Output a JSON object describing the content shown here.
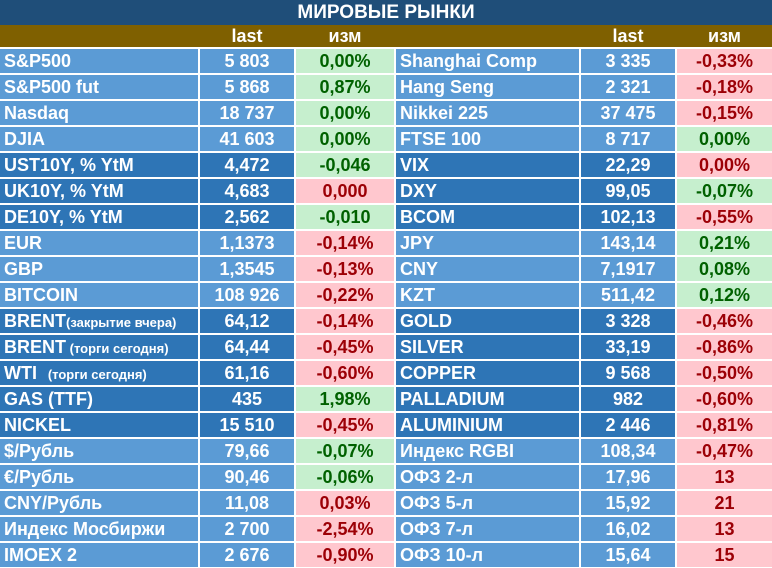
{
  "title": "МИРОВЫЕ РЫНКИ",
  "headers": {
    "last": "last",
    "change": "изм"
  },
  "rows": [
    {
      "left": {
        "name": "S&P500",
        "last": "5 803",
        "chg": "0,00%",
        "tone": "pos"
      },
      "right": {
        "name": "Shanghai Comp",
        "last": "3 335",
        "chg": "-0,33%",
        "tone": "neg"
      },
      "shade": "light"
    },
    {
      "left": {
        "name": "S&P500 fut",
        "last": "5 868",
        "chg": "0,87%",
        "tone": "pos"
      },
      "right": {
        "name": "Hang Seng",
        "last": "2 321",
        "chg": "-0,18%",
        "tone": "neg"
      },
      "shade": "light"
    },
    {
      "left": {
        "name": "Nasdaq",
        "last": "18 737",
        "chg": "0,00%",
        "tone": "pos"
      },
      "right": {
        "name": "Nikkei 225",
        "last": "37 475",
        "chg": "-0,15%",
        "tone": "neg"
      },
      "shade": "light"
    },
    {
      "left": {
        "name": "DJIA",
        "last": "41 603",
        "chg": "0,00%",
        "tone": "pos"
      },
      "right": {
        "name": "FTSE 100",
        "last": "8 717",
        "chg": "0,00%",
        "tone": "pos"
      },
      "shade": "light"
    },
    {
      "left": {
        "name": "UST10Y, % YtM",
        "last": "4,472",
        "chg": "-0,046",
        "tone": "pos"
      },
      "right": {
        "name": "VIX",
        "last": "22,29",
        "chg": "0,00%",
        "tone": "neg"
      },
      "shade": "dark"
    },
    {
      "left": {
        "name": "UK10Y, % YtM",
        "last": "4,683",
        "chg": "0,000",
        "tone": "neg"
      },
      "right": {
        "name": "DXY",
        "last": "99,05",
        "chg": "-0,07%",
        "tone": "pos"
      },
      "shade": "dark"
    },
    {
      "left": {
        "name": "DE10Y, % YtM",
        "last": "2,562",
        "chg": "-0,010",
        "tone": "pos"
      },
      "right": {
        "name": "BCOM",
        "last": "102,13",
        "chg": "-0,55%",
        "tone": "neg"
      },
      "shade": "dark"
    },
    {
      "left": {
        "name": "EUR",
        "last": "1,1373",
        "chg": "-0,14%",
        "tone": "neg"
      },
      "right": {
        "name": "JPY",
        "last": "143,14",
        "chg": "0,21%",
        "tone": "pos"
      },
      "shade": "light"
    },
    {
      "left": {
        "name": "GBP",
        "last": "1,3545",
        "chg": "-0,13%",
        "tone": "neg"
      },
      "right": {
        "name": "CNY",
        "last": "7,1917",
        "chg": "0,08%",
        "tone": "pos"
      },
      "shade": "light"
    },
    {
      "left": {
        "name": "BITCOIN",
        "last": "108 926",
        "chg": "-0,22%",
        "tone": "neg"
      },
      "right": {
        "name": "KZT",
        "last": "511,42",
        "chg": "0,12%",
        "tone": "pos"
      },
      "shade": "light"
    },
    {
      "left": {
        "name": "BRENT",
        "note": "(закрытие вчера)",
        "last": "64,12",
        "chg": "-0,14%",
        "tone": "neg"
      },
      "right": {
        "name": "GOLD",
        "last": "3 328",
        "chg": "-0,46%",
        "tone": "neg"
      },
      "shade": "dark"
    },
    {
      "left": {
        "name": "BRENT",
        "note": " (торги сегодня)",
        "last": "64,44",
        "chg": "-0,45%",
        "tone": "neg"
      },
      "right": {
        "name": "SILVER",
        "last": "33,19",
        "chg": "-0,86%",
        "tone": "neg"
      },
      "shade": "dark"
    },
    {
      "left": {
        "name": "WTI",
        "note": "   (торги сегодня)",
        "last": "61,16",
        "chg": "-0,60%",
        "tone": "neg"
      },
      "right": {
        "name": "COPPER",
        "last": "9 568",
        "chg": "-0,50%",
        "tone": "neg"
      },
      "shade": "dark"
    },
    {
      "left": {
        "name": "GAS (TTF)",
        "last": "435",
        "chg": "1,98%",
        "tone": "pos"
      },
      "right": {
        "name": "PALLADIUM",
        "last": "982",
        "chg": "-0,60%",
        "tone": "neg"
      },
      "shade": "dark"
    },
    {
      "left": {
        "name": "NICKEL",
        "last": "15 510",
        "chg": "-0,45%",
        "tone": "neg"
      },
      "right": {
        "name": "ALUMINIUM",
        "last": "2 446",
        "chg": "-0,81%",
        "tone": "neg"
      },
      "shade": "dark"
    },
    {
      "left": {
        "name": "$/Рубль",
        "last": "79,66",
        "chg": "-0,07%",
        "tone": "pos"
      },
      "right": {
        "name": "Индекс RGBI",
        "last": "108,34",
        "chg": "-0,47%",
        "tone": "neg"
      },
      "shade": "light"
    },
    {
      "left": {
        "name": "€/Рубль",
        "last": "90,46",
        "chg": "-0,06%",
        "tone": "pos"
      },
      "right": {
        "name": "ОФЗ 2-л",
        "last": "17,96",
        "chg": "13",
        "tone": "neg"
      },
      "shade": "light"
    },
    {
      "left": {
        "name": "CNY/Рубль",
        "last": "11,08",
        "chg": "0,03%",
        "tone": "neg"
      },
      "right": {
        "name": "ОФЗ 5-л",
        "last": "15,92",
        "chg": "21",
        "tone": "neg"
      },
      "shade": "light"
    },
    {
      "left": {
        "name": "Индекс Мосбиржи",
        "last": "2 700",
        "chg": "-2,54%",
        "tone": "neg"
      },
      "right": {
        "name": "ОФЗ 7-л",
        "last": "16,02",
        "chg": "13",
        "tone": "neg"
      },
      "shade": "light"
    },
    {
      "left": {
        "name": "IMOEX 2",
        "last": "2 676",
        "chg": "-0,90%",
        "tone": "neg"
      },
      "right": {
        "name": "ОФЗ 10-л",
        "last": "15,64",
        "chg": "15",
        "tone": "neg"
      },
      "shade": "light"
    }
  ]
}
